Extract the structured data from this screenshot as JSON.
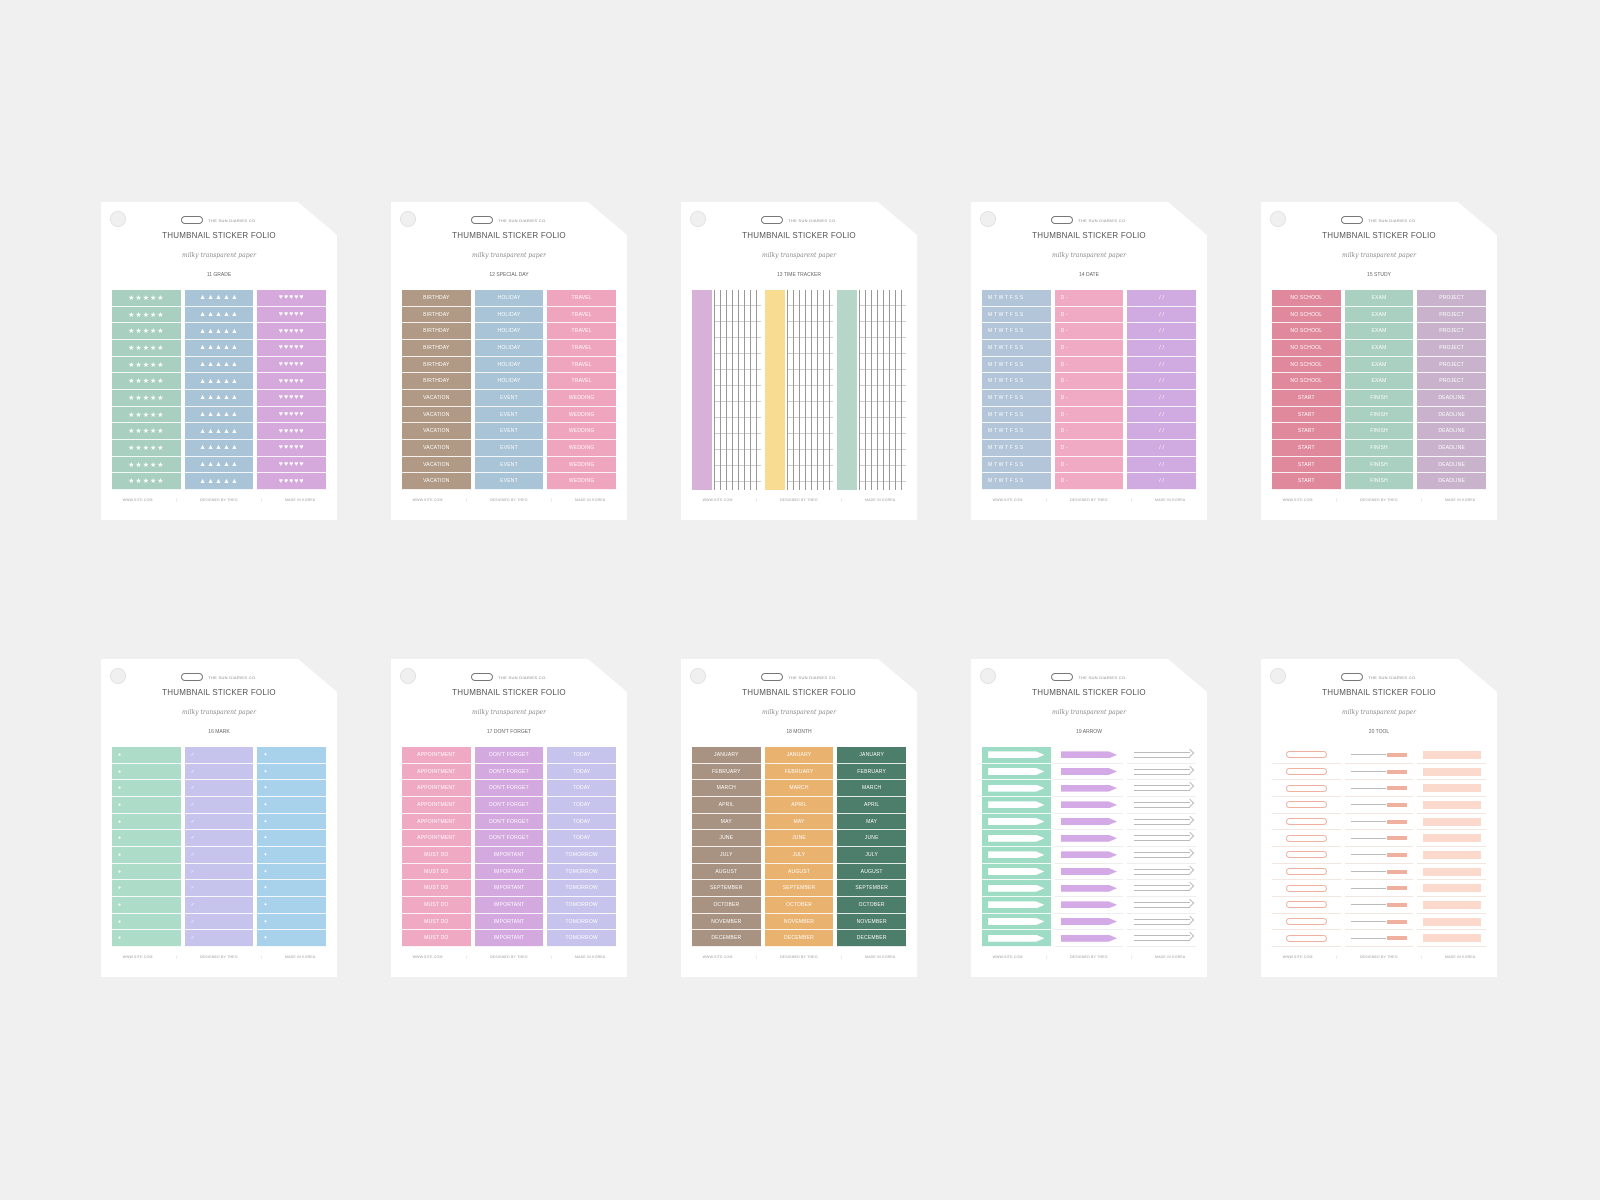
{
  "common": {
    "brand": "THE SUN DIARIES CO.",
    "title": "THUMBNAIL STICKER FOLIO",
    "subtitle": "milky transparent paper"
  },
  "cards": [
    {
      "label": "11 GRADE",
      "footer": [
        "WWW.SITE.COM",
        "DESIGNED BY THEO",
        "MADE IN KOREA"
      ],
      "columns": [
        {
          "color": "#a9cfc1",
          "icon": "star-icon",
          "text": "★★★★★",
          "rows": 12
        },
        {
          "color": "#a9c4d6",
          "icon": "drop-icon",
          "text": "▲▲▲▲▲",
          "rows": 12
        },
        {
          "color": "#d6a9dd",
          "icon": "heart-icon",
          "text": "♥♥♥♥♥",
          "rows": 12
        }
      ]
    },
    {
      "label": "12 SPECIAL DAY",
      "footer": [
        "WWW.SITE.COM",
        "DESIGNED BY THEO",
        "MADE IN KOREA"
      ],
      "columns": [
        {
          "color": "#b09a85",
          "items": [
            "BIRTHDAY",
            "BIRTHDAY",
            "BIRTHDAY",
            "BIRTHDAY",
            "BIRTHDAY",
            "BIRTHDAY",
            "VACATION",
            "VACATION",
            "VACATION",
            "VACATION",
            "VACATION",
            "VACATION"
          ]
        },
        {
          "color": "#a9c4d6",
          "items": [
            "HOLIDAY",
            "HOLIDAY",
            "HOLIDAY",
            "HOLIDAY",
            "HOLIDAY",
            "HOLIDAY",
            "EVENT",
            "EVENT",
            "EVENT",
            "EVENT",
            "EVENT",
            "EVENT"
          ]
        },
        {
          "color": "#f0a5be",
          "items": [
            "TRAVEL",
            "TRAVEL",
            "TRAVEL",
            "TRAVEL",
            "TRAVEL",
            "TRAVEL",
            "WEDDING",
            "WEDDING",
            "WEDDING",
            "WEDDING",
            "WEDDING",
            "WEDDING"
          ]
        }
      ]
    },
    {
      "label": "13 TIME TRACKER",
      "footer": [
        "WWW.SITE.COM",
        "DESIGNED BY THEO",
        "MADE IN KOREA"
      ],
      "tracker": [
        {
          "color": "#d8b1d8"
        },
        {
          "color": "#f8dc92"
        },
        {
          "color": "#b5d6c8"
        }
      ]
    },
    {
      "label": "14 DATE",
      "footer": [
        "WWW.SITE.COM",
        "DESIGNED BY THEO",
        "MADE IN KOREA"
      ],
      "columns": [
        {
          "color": "#b3c5d8",
          "items": [
            "M T W T F S S",
            "M T W T F S S",
            "M T W T F S S",
            "M T W T F S S",
            "M T W T F S S",
            "M T W T F S S",
            "M T W T F S S",
            "M T W T F S S",
            "M T W T F S S",
            "M T W T F S S",
            "M T W T F S S",
            "M T W T F S S"
          ],
          "align": "left"
        },
        {
          "color": "#f0aac4",
          "items": [
            "D -",
            "D -",
            "D -",
            "D -",
            "D -",
            "D -",
            "D -",
            "D -",
            "D -",
            "D -",
            "D -",
            "D -"
          ],
          "align": "left"
        },
        {
          "color": "#d0abe2",
          "items": [
            "/  /",
            "/  /",
            "/  /",
            "/  /",
            "/  /",
            "/  /",
            "/  /",
            "/  /",
            "/  /",
            "/  /",
            "/  /",
            "/  /"
          ]
        }
      ]
    },
    {
      "label": "15 STUDY",
      "footer": [
        "WWW.SITE.COM",
        "DESIGNED BY THEO",
        "MADE IN KOREA"
      ],
      "columns": [
        {
          "color": "#e0899c",
          "items": [
            "NO SCHOOL",
            "NO SCHOOL",
            "NO SCHOOL",
            "NO SCHOOL",
            "NO SCHOOL",
            "NO SCHOOL",
            "START",
            "START",
            "START",
            "START",
            "START",
            "START"
          ]
        },
        {
          "color": "#a9d0c0",
          "items": [
            "EXAM",
            "EXAM",
            "EXAM",
            "EXAM",
            "EXAM",
            "EXAM",
            "FINISH",
            "FINISH",
            "FINISH",
            "FINISH",
            "FINISH",
            "FINISH"
          ]
        },
        {
          "color": "#c9b3cc",
          "items": [
            "PROJECT",
            "PROJECT",
            "PROJECT",
            "PROJECT",
            "PROJECT",
            "PROJECT",
            "DEADLINE",
            "DEADLINE",
            "DEADLINE",
            "DEADLINE",
            "DEADLINE",
            "DEADLINE"
          ]
        }
      ]
    },
    {
      "label": "16 MARK",
      "footer": [
        "WWW.SITE.COM",
        "DESIGNED BY THEO",
        "MADE IN KOREA"
      ],
      "columns": [
        {
          "color": "#addcc8",
          "text": "●",
          "rows": 12,
          "align": "left"
        },
        {
          "color": "#c6c3ec",
          "text": "✓",
          "rows": 12,
          "align": "left"
        },
        {
          "color": "#a8d2ec",
          "text": "✦",
          "rows": 12,
          "align": "left"
        }
      ]
    },
    {
      "label": "17 DON'T FORGET",
      "footer": [
        "WWW.SITE.COM",
        "DESIGNED BY THEO",
        "MADE IN KOREA"
      ],
      "columns": [
        {
          "color": "#f0a9c2",
          "items": [
            "APPOINTMENT",
            "APPOINTMENT",
            "APPOINTMENT",
            "APPOINTMENT",
            "APPOINTMENT",
            "APPOINTMENT",
            "MUST DO",
            "MUST DO",
            "MUST DO",
            "MUST DO",
            "MUST DO",
            "MUST DO"
          ]
        },
        {
          "color": "#d3a9e0",
          "items": [
            "DON'T FORGET",
            "DON'T FORGET",
            "DON'T FORGET",
            "DON'T FORGET",
            "DON'T FORGET",
            "DON'T FORGET",
            "IMPORTANT",
            "IMPORTANT",
            "IMPORTANT",
            "IMPORTANT",
            "IMPORTANT",
            "IMPORTANT"
          ]
        },
        {
          "color": "#c6c3ec",
          "items": [
            "TODAY",
            "TODAY",
            "TODAY",
            "TODAY",
            "TODAY",
            "TODAY",
            "TOMORROW",
            "TOMORROW",
            "TOMORROW",
            "TOMORROW",
            "TOMORROW",
            "TOMORROW"
          ]
        }
      ]
    },
    {
      "label": "18 MONTH",
      "footer": [
        "WWW.SITE.COM",
        "DESIGNED BY THEO",
        "MADE IN KOREA"
      ],
      "columns": [
        {
          "color": "#a89382",
          "items": [
            "JANUARY",
            "FEBRUARY",
            "MARCH",
            "APRIL",
            "MAY",
            "JUNE",
            "JULY",
            "AUGUST",
            "SEPTEMBER",
            "OCTOBER",
            "NOVEMBER",
            "DECEMBER"
          ]
        },
        {
          "color": "#e9b26e",
          "items": [
            "JANUARY",
            "FEBRUARY",
            "MARCH",
            "APRIL",
            "MAY",
            "JUNE",
            "JULY",
            "AUGUST",
            "SEPTEMBER",
            "OCTOBER",
            "NOVEMBER",
            "DECEMBER"
          ]
        },
        {
          "color": "#4d7d6b",
          "items": [
            "JANUARY",
            "FEBRUARY",
            "MARCH",
            "APRIL",
            "MAY",
            "JUNE",
            "JULY",
            "AUGUST",
            "SEPTEMBER",
            "OCTOBER",
            "NOVEMBER",
            "DECEMBER"
          ]
        }
      ]
    },
    {
      "label": "19 ARROW",
      "footer": [
        "WWW.SITE.COM",
        "DESIGNED BY THEO",
        "MADE IN KOREA"
      ],
      "decor": "arrow",
      "colors": [
        "#9fdcc6",
        "#d3a9e6",
        "#ffffff"
      ]
    },
    {
      "label": "20 TOOL",
      "footer": [
        "WWW.SITE.COM",
        "DESIGNED BY THEO",
        "MADE IN KOREA"
      ],
      "decor": "tool",
      "colors": [
        "#ffffff",
        "#ffffff",
        "#ffffff"
      ]
    }
  ]
}
